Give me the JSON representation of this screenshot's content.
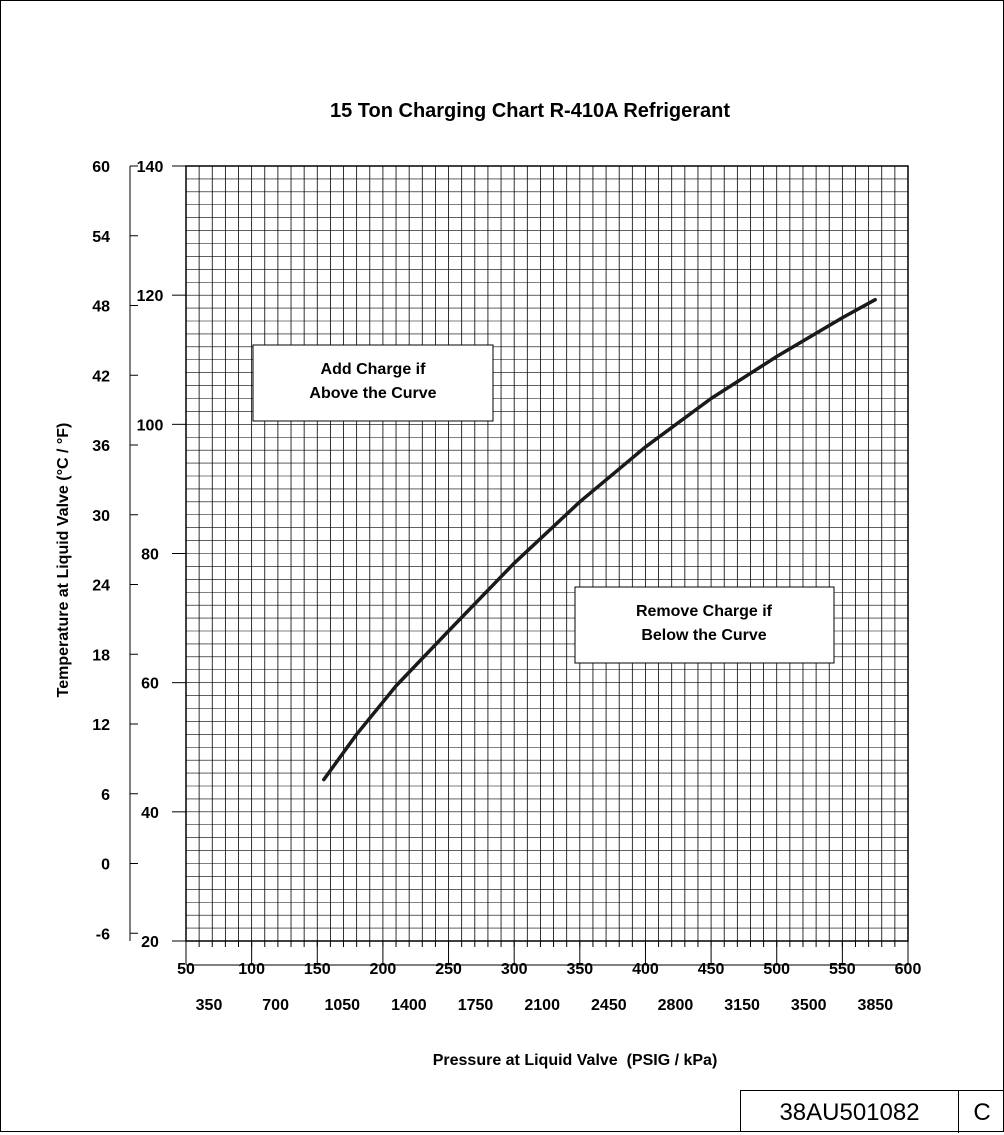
{
  "chart_data": {
    "type": "line",
    "title": "15 Ton Charging Chart R-410A Refrigerant",
    "xlabel": "Pressure at Liquid Valve  (PSIG / kPa)",
    "ylabel": "Temperature at Liquid Valve (°C / °F)",
    "xlim": [
      50,
      600
    ],
    "ylim": [
      20,
      140
    ],
    "x_ticks_psig": [
      "50",
      "100",
      "150",
      "200",
      "250",
      "300",
      "350",
      "400",
      "450",
      "500",
      "550",
      "600"
    ],
    "x_ticks_kpa": [
      "350",
      "700",
      "1050",
      "1400",
      "1750",
      "2100",
      "2450",
      "2800",
      "3150",
      "3500",
      "3850"
    ],
    "y_ticks_f": [
      "20",
      "40",
      "60",
      "80",
      "100",
      "120",
      "140"
    ],
    "y_ticks_c": [
      "-6",
      "0",
      "6",
      "12",
      "18",
      "24",
      "30",
      "36",
      "42",
      "48",
      "54",
      "60"
    ],
    "grid": true,
    "series": [
      {
        "x": [
          155,
          180,
          210,
          250,
          300,
          350,
          400,
          450,
          500,
          550,
          575
        ],
        "y": [
          45,
          52,
          59.5,
          68,
          78.5,
          88,
          96.5,
          104,
          110.5,
          116.5,
          119.3
        ]
      }
    ],
    "annotations": [
      {
        "line1": "Add Charge if",
        "line2": "Above the Curve"
      },
      {
        "line1": "Remove Charge if",
        "line2": "Below the Curve"
      }
    ]
  },
  "document": {
    "number": "38AU501082",
    "revision": "C"
  }
}
